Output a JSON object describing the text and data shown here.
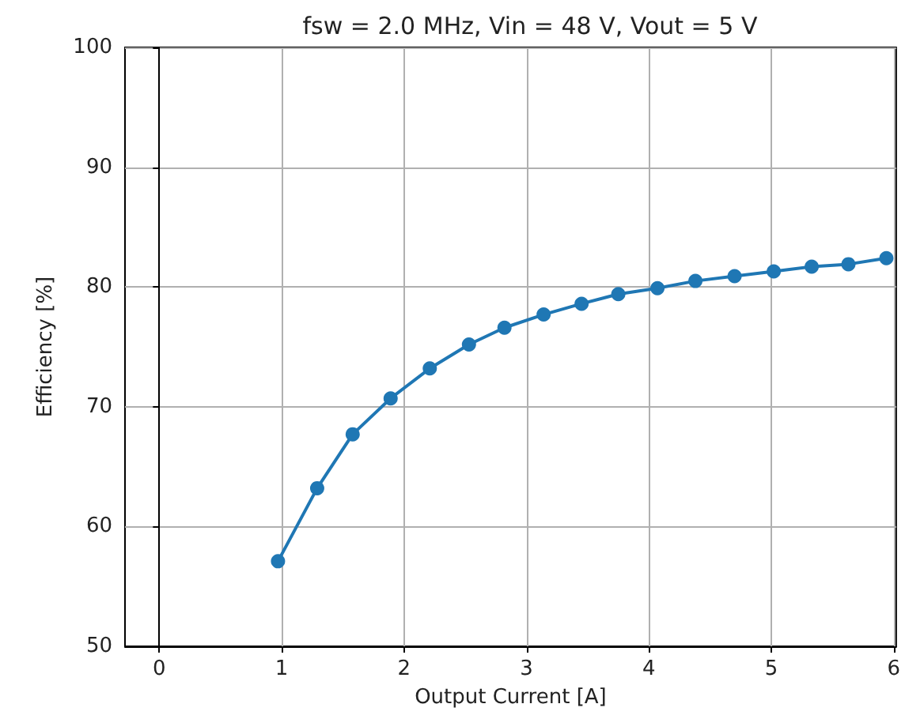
{
  "chart_data": {
    "type": "line",
    "title": "fsw = 2.0 MHz, Vin = 48 V, Vout = 5 V",
    "xlabel": "Output Current [A]",
    "ylabel": "Efficiency [%]",
    "x": [
      0.97,
      1.29,
      1.58,
      1.89,
      2.21,
      2.53,
      2.82,
      3.14,
      3.45,
      3.75,
      4.07,
      4.38,
      4.7,
      5.02,
      5.33,
      5.63,
      5.94
    ],
    "series": [
      {
        "color": "#1f77b4",
        "values": [
          57.1,
          63.2,
          67.7,
          70.7,
          73.2,
          75.2,
          76.6,
          77.7,
          78.6,
          79.4,
          79.9,
          80.5,
          80.9,
          81.3,
          81.7,
          81.9,
          82.4
        ]
      }
    ],
    "xlim": [
      -0.28,
      6.02
    ],
    "xticks": [
      0,
      1,
      2,
      3,
      4,
      5,
      6
    ],
    "ylim": [
      50,
      100
    ],
    "yticks": [
      50,
      60,
      70,
      80,
      90,
      100
    ],
    "grid": true,
    "marker": "circle",
    "line_style": "solid"
  }
}
